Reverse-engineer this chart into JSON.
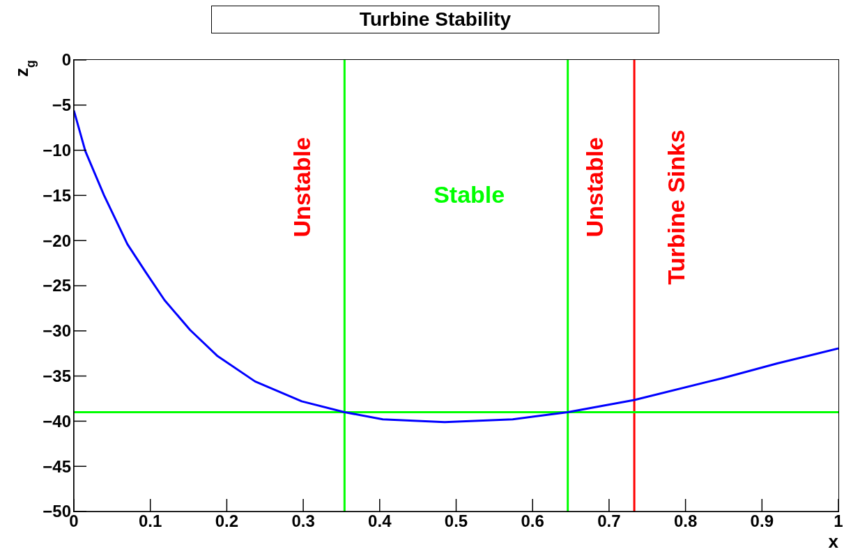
{
  "chart_data": {
    "type": "line",
    "title": "Turbine Stability",
    "xlabel": "x",
    "ylabel": "z$_{g}$",
    "series": [
      {
        "color": "#0000ff",
        "x": [
          0,
          0.015,
          0.0395,
          0.07,
          0.094,
          0.1186,
          0.152,
          0.188,
          0.237,
          0.298,
          0.354,
          0.404,
          0.485,
          0.574,
          0.646,
          0.733,
          0.85,
          0.92,
          1
        ],
        "values": [
          -5.6,
          -10.1,
          -15,
          -20.4,
          -23.5,
          -26.6,
          -29.9,
          -32.8,
          -35.6,
          -37.8,
          -39,
          -39.8,
          -40.1,
          -39.8,
          -39,
          -37.65,
          -35.2,
          -33.6,
          -31.95
        ]
      }
    ],
    "xlim": [
      0,
      1
    ],
    "ylim": [
      -50,
      0
    ],
    "xticks": [
      0,
      0.1,
      0.2,
      0.3,
      0.4,
      0.5,
      0.6,
      0.7,
      0.8,
      0.9,
      1
    ],
    "yticks": [
      {
        "value": -50,
        "label": "−50"
      },
      {
        "value": -45,
        "label": "−45"
      },
      {
        "value": -40,
        "label": "−40"
      },
      {
        "value": -35,
        "label": "−35"
      },
      {
        "value": -30,
        "label": "−30"
      },
      {
        "value": -25,
        "label": "−25"
      },
      {
        "value": -20,
        "label": "−20"
      },
      {
        "value": -15,
        "label": "−15"
      },
      {
        "value": -10,
        "label": "−10"
      },
      {
        "value": -5,
        "label": "−5"
      },
      0
    ],
    "ref_lines": [
      {
        "axis": "x",
        "value": 0.354,
        "color": "#00ff00"
      },
      {
        "axis": "x",
        "value": 0.646,
        "color": "#00ff00"
      },
      {
        "axis": "x",
        "value": 0.733,
        "color": "#ff0000"
      },
      {
        "axis": "y",
        "value": -39,
        "color": "#00ff00"
      }
    ],
    "annotations": [
      "Unstable",
      "Stable",
      "Unstable",
      "Turbine Sinks"
    ],
    "marker": "none",
    "line_style": "solid"
  }
}
